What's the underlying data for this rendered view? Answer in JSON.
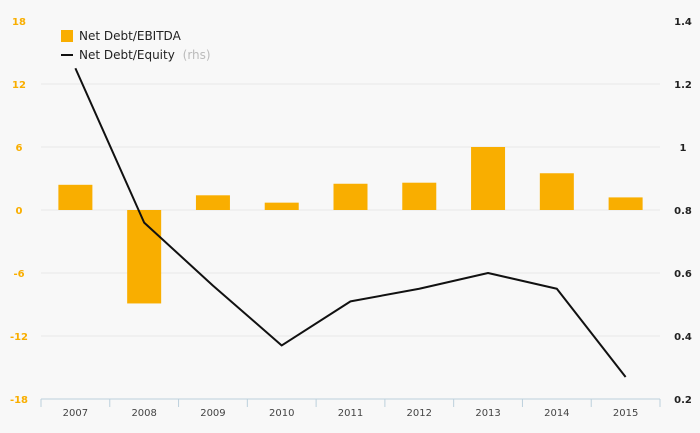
{
  "colors": {
    "bar": "#F9AE00",
    "line": "#111111",
    "left_axis_text": "#F9AE00",
    "grid": "#e8e8e8",
    "background": "#f8f8f8",
    "axis": "#bcd0dc"
  },
  "legend": {
    "position": "top-left",
    "bar_label": "Net Debt/EBITDA",
    "line_label": "Net Debt/Equity",
    "line_suffix": "(rhs)"
  },
  "chart_data": {
    "type": "bar",
    "categories": [
      "2007",
      "2008",
      "2009",
      "2010",
      "2011",
      "2012",
      "2013",
      "2014",
      "2015"
    ],
    "series": [
      {
        "name": "Net Debt/EBITDA",
        "type": "bar",
        "axis": "left",
        "values": [
          2.4,
          -8.9,
          1.4,
          0.7,
          2.5,
          2.6,
          6.0,
          3.5,
          1.2
        ]
      },
      {
        "name": "Net Debt/Equity (rhs)",
        "type": "line",
        "axis": "right",
        "values": [
          1.25,
          0.76,
          0.56,
          0.37,
          0.51,
          0.55,
          0.6,
          0.55,
          0.27
        ]
      }
    ],
    "y_left": {
      "ticks": [
        "18",
        "12",
        "6",
        "0",
        "-6",
        "-12",
        "-18"
      ],
      "range": [
        -18,
        18
      ]
    },
    "y_right": {
      "ticks": [
        "1.4",
        "1.2",
        "1",
        "0.8",
        "0.6",
        "0.4",
        "0.2"
      ],
      "range": [
        0.2,
        1.4
      ]
    },
    "grid": true
  }
}
